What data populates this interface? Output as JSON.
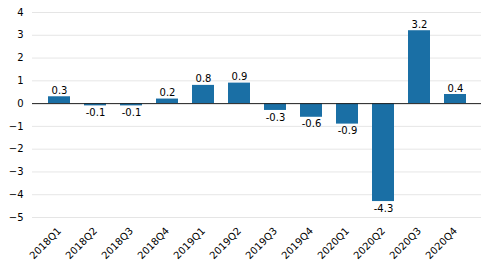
{
  "chart_data": {
    "type": "bar",
    "categories": [
      "2018Q1",
      "2018Q2",
      "2018Q3",
      "2018Q4",
      "2019Q1",
      "2019Q2",
      "2019Q3",
      "2019Q4",
      "2020Q1",
      "2020Q2",
      "2020Q3",
      "2020Q4"
    ],
    "values": [
      0.3,
      -0.1,
      -0.1,
      0.2,
      0.8,
      0.9,
      -0.3,
      -0.6,
      -0.9,
      -4.3,
      3.2,
      0.4
    ],
    "color": "#1a6fa5",
    "ylim": [
      -5,
      4
    ],
    "yticks": [
      -5,
      -4,
      -3,
      -2,
      -1,
      0,
      1,
      2,
      3,
      4
    ],
    "grid": true,
    "data_labels": true
  }
}
